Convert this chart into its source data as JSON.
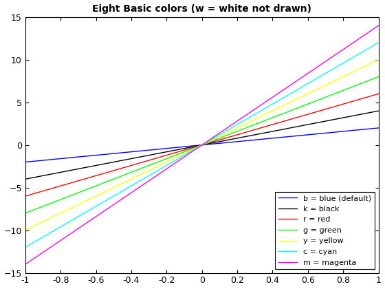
{
  "title": "Eight Basic colors (w = white not drawn)",
  "xlim": [
    -1,
    1
  ],
  "ylim": [
    -15,
    15
  ],
  "lines": [
    {
      "slope": 2,
      "color": "#0000ff",
      "label": "b = blue (default)",
      "style": "-"
    },
    {
      "slope": 4,
      "color": "#000000",
      "label": "k = black",
      "style": "-"
    },
    {
      "slope": 6,
      "color": "#ff0000",
      "label": "r = red",
      "style": "-"
    },
    {
      "slope": 8,
      "color": "#00ff00",
      "label": "g = green",
      "style": "-"
    },
    {
      "slope": 10,
      "color": "#ffff00",
      "label": "y = yellow",
      "style": "-"
    },
    {
      "slope": 12,
      "color": "#00ffff",
      "label": "c = cyan",
      "style": "-"
    },
    {
      "slope": 14,
      "color": "#ff00ff",
      "label": "m = magenta",
      "style": "-"
    }
  ],
  "legend_loc": "lower right",
  "xticks": [
    -1,
    -0.8,
    -0.6,
    -0.4,
    -0.2,
    0,
    0.2,
    0.4,
    0.6,
    0.8,
    1
  ],
  "yticks": [
    -15,
    -10,
    -5,
    0,
    5,
    10,
    15
  ],
  "title_fontsize": 10,
  "tick_labelsize": 9,
  "legend_fontsize": 8
}
